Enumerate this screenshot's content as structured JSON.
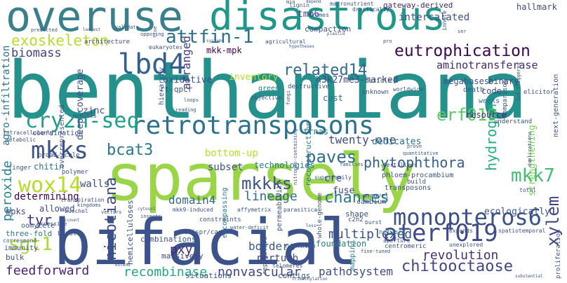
{
  "words": [
    {
      "text": "overuse",
      "color": "#3a7f8c"
    },
    {
      "text": "disastrous",
      "color": "#21968a"
    },
    {
      "text": "benthamiana",
      "color": "#25918c"
    },
    {
      "text": "sparsely",
      "color": "#9ad447"
    },
    {
      "text": "bifacial",
      "color": "#3b528b"
    },
    {
      "text": "retrotransposons",
      "color": "#2c728e"
    },
    {
      "text": "lbd4",
      "color": "#33608d"
    },
    {
      "text": "attfin-1",
      "color": "#2d708e"
    },
    {
      "text": "exoskeleton",
      "color": "#b5de2b"
    },
    {
      "text": "eutrophication",
      "color": "#3e0751"
    },
    {
      "text": "related14",
      "color": "#2f6b8e"
    },
    {
      "text": "cry2h-seq",
      "color": "#1f9e89"
    },
    {
      "text": "aminotransferase",
      "color": "#482677"
    },
    {
      "text": "biomass",
      "color": "#433e85"
    },
    {
      "text": "mkks",
      "color": "#3b528b"
    },
    {
      "text": "bcat3",
      "color": "#2a788e"
    },
    {
      "text": "erf019",
      "color": "#5ec962"
    },
    {
      "text": "wox14",
      "color": "#b5de2b"
    },
    {
      "text": "paves",
      "color": "#2d6f8e"
    },
    {
      "text": "phytophthora",
      "color": "#355f8d"
    },
    {
      "text": "monopteros6",
      "color": "#3b528b"
    },
    {
      "text": "mkk7",
      "color": "#40bd72"
    },
    {
      "text": "aterf019",
      "color": "#3e4a89"
    },
    {
      "text": "chitooctaose",
      "color": "#3f4788"
    },
    {
      "text": "mkkks",
      "color": "#3b528b"
    },
    {
      "text": "chances",
      "color": "#2a788e"
    },
    {
      "text": "revolution",
      "color": "#472d7b"
    },
    {
      "text": "sgt1",
      "color": "#a8db34"
    },
    {
      "text": "pathosystem",
      "color": "#3e4c8a"
    },
    {
      "text": "recombinase",
      "color": "#22a785"
    },
    {
      "text": "nonvascular",
      "color": "#3f4788"
    },
    {
      "text": "lineage",
      "color": "#2f6c8e"
    },
    {
      "text": "domain4",
      "color": "#31688e"
    },
    {
      "text": "hydrogen",
      "color": "#26ad81"
    },
    {
      "text": "xylem",
      "color": "#3f4788"
    },
    {
      "text": "nicotiana",
      "color": "#3d4d8a"
    },
    {
      "text": "twenty-one",
      "color": "#3d4d8a"
    },
    {
      "text": "peroxide",
      "color": "#25848e"
    },
    {
      "text": "agro-infiltration",
      "color": "#2a768e"
    },
    {
      "text": "tyr",
      "color": "#46327e"
    },
    {
      "text": "pxy",
      "color": "#472a7a"
    },
    {
      "text": "feedforward",
      "color": "#481f70"
    },
    {
      "text": "multiplexed",
      "color": "#3a538b"
    },
    {
      "text": "borders",
      "color": "#38598c"
    },
    {
      "text": "perturb",
      "color": "#3f4788"
    },
    {
      "text": "mkk-mpk",
      "color": "#440154"
    },
    {
      "text": "tmo6",
      "color": "#3f4788"
    },
    {
      "text": "intercalated",
      "color": "#3b528b"
    },
    {
      "text": "gateway-derived",
      "color": "#482677"
    },
    {
      "text": "hallmark",
      "color": "#3e4a89"
    },
    {
      "text": "oxidative",
      "color": "#3b528b"
    },
    {
      "text": "determining",
      "color": "#440154"
    },
    {
      "text": "walls",
      "color": "#3f4788"
    },
    {
      "text": "chitin",
      "color": "#2e6f8e"
    },
    {
      "text": "bottom-up",
      "color": "#b5de2b"
    },
    {
      "text": "subset",
      "color": "#3b528b"
    },
    {
      "text": "technologies",
      "color": "#2a788e"
    },
    {
      "text": "cre",
      "color": "#3b528b"
    },
    {
      "text": "fuse",
      "color": "#3f4788"
    },
    {
      "text": "trnas",
      "color": "#2a788e"
    },
    {
      "text": "dedicates",
      "color": "#2c728e"
    },
    {
      "text": "resource",
      "color": "#482677"
    },
    {
      "text": "inventory",
      "color": "#b5de2b"
    },
    {
      "text": "h3k27me3-marked",
      "color": "#3f4788"
    },
    {
      "text": "arranged",
      "color": "#433e85"
    },
    {
      "text": "deep-coverage",
      "color": "#3b528b"
    },
    {
      "text": "megabases",
      "color": "#3b528b"
    },
    {
      "text": "binary",
      "color": "#3f4788"
    },
    {
      "text": "zinc",
      "color": "#3e4a89"
    },
    {
      "text": "mpks",
      "color": "#414487"
    },
    {
      "text": "foundation",
      "color": "#2a788e"
    },
    {
      "text": "strengthening",
      "color": "#7ad151"
    },
    {
      "text": "ecologically",
      "color": "#3b528b"
    },
    {
      "text": "cost",
      "color": "#2c728e"
    },
    {
      "text": "code",
      "color": "#3f4788"
    },
    {
      "text": "compaction",
      "color": "#3b528b"
    },
    {
      "text": "architecture",
      "color": "#3e4a89"
    },
    {
      "text": "allowed",
      "color": "#3f4788"
    },
    {
      "text": "three-fold",
      "color": "#2a788e"
    },
    {
      "text": "bulk",
      "color": "#3b528b"
    },
    {
      "text": "massively",
      "color": "#3f4788"
    },
    {
      "text": "combinations",
      "color": "#3b528b"
    },
    {
      "text": "situations",
      "color": "#3b528b"
    },
    {
      "text": "contigs",
      "color": "#3b528b"
    },
    {
      "text": "oomycete",
      "color": "#3b528b"
    },
    {
      "text": "immunity",
      "color": "#3b528b"
    },
    {
      "text": "shape",
      "color": "#3b528b"
    },
    {
      "text": "cambium",
      "color": "#3b528b"
    },
    {
      "text": "green",
      "color": "#2a788e"
    },
    {
      "text": "weeks",
      "color": "#2a788e"
    },
    {
      "text": "death",
      "color": "#3b528b"
    },
    {
      "text": "reconstruction",
      "color": "#2a788e"
    },
    {
      "text": "phloem-procambium",
      "color": "#3b528b"
    },
    {
      "text": "network",
      "color": "#2a788e"
    },
    {
      "text": "centromeric",
      "color": "#3b528b"
    },
    {
      "text": "transposons",
      "color": "#3b528b"
    },
    {
      "text": "repetitive",
      "color": "#3b528b"
    },
    {
      "text": "mapping",
      "color": "#2a788e"
    },
    {
      "text": "coordination",
      "color": "#3b528b"
    },
    {
      "text": "metabolic",
      "color": "#3b528b"
    },
    {
      "text": "broad-scale",
      "color": "#3b528b"
    },
    {
      "text": "hemicelluloses",
      "color": "#3b528b"
    },
    {
      "text": "bundle",
      "color": "#3b528b"
    },
    {
      "text": "encompassing",
      "color": "#2a788e"
    },
    {
      "text": "permeability",
      "color": "#3b528b"
    },
    {
      "text": "next-generation",
      "color": "#3b528b"
    },
    {
      "text": "unknown",
      "color": "#3b528b"
    },
    {
      "text": "comparison",
      "color": "#3b528b"
    },
    {
      "text": "superfamily",
      "color": "#3b528b"
    },
    {
      "text": "build",
      "color": "#3b528b"
    },
    {
      "text": "fertilizer",
      "color": "#3b528b"
    },
    {
      "text": "unravel",
      "color": "#3b528b"
    },
    {
      "text": "understand",
      "color": "#3b528b"
    },
    {
      "text": "finger",
      "color": "#3b528b"
    },
    {
      "text": "transpiration",
      "color": "#3b528b"
    },
    {
      "text": "excessive",
      "color": "#3b528b"
    },
    {
      "text": "polymer",
      "color": "#3b528b"
    },
    {
      "text": "intracellularly",
      "color": "#3b528b"
    },
    {
      "text": "modules",
      "color": "#3b528b"
    },
    {
      "text": "wuschel",
      "color": "#3b528b"
    },
    {
      "text": "kingdoms",
      "color": "#3b528b"
    },
    {
      "text": "correspond",
      "color": "#3b528b"
    },
    {
      "text": "overrepresented",
      "color": "#3b528b"
    },
    {
      "text": "crispr/cas9",
      "color": "#3b528b"
    },
    {
      "text": "mkk9-induced",
      "color": "#3b528b"
    },
    {
      "text": "affymetrix",
      "color": "#3b528b"
    },
    {
      "text": "parasitica",
      "color": "#3b528b"
    },
    {
      "text": "whole-genome",
      "color": "#3b528b"
    },
    {
      "text": "c2h2",
      "color": "#3b528b"
    },
    {
      "text": "cuticle",
      "color": "#3b528b"
    },
    {
      "text": "hierarchy",
      "color": "#3b528b"
    },
    {
      "text": "rt-qpcr",
      "color": "#3b528b"
    },
    {
      "text": "elicitor",
      "color": "#3b528b"
    },
    {
      "text": "worldwide",
      "color": "#3b528b"
    },
    {
      "text": "proliferation",
      "color": "#3b528b"
    },
    {
      "text": "spatiotemporal",
      "color": "#3b528b"
    },
    {
      "text": "telomeres",
      "color": "#3b528b"
    },
    {
      "text": "aperture",
      "color": "#3b528b"
    },
    {
      "text": "unexplored",
      "color": "#3b528b"
    },
    {
      "text": "fine-tuned",
      "color": "#3b528b"
    },
    {
      "text": "total",
      "color": "#3b528b"
    },
    {
      "text": "expands",
      "color": "#3b528b"
    },
    {
      "text": "burst",
      "color": "#3b528b"
    },
    {
      "text": "destructive",
      "color": "#3b528b"
    },
    {
      "text": "agricultural",
      "color": "#3b528b"
    },
    {
      "text": "eukaryotes",
      "color": "#3b528b"
    },
    {
      "text": "lignin",
      "color": "#3b528b"
    },
    {
      "text": "macronutrient",
      "color": "#3b528b"
    },
    {
      "text": "frames",
      "color": "#3b528b"
    },
    {
      "text": "drastically",
      "color": "#3b528b"
    },
    {
      "text": "innate",
      "color": "#3b528b"
    },
    {
      "text": "predicted",
      "color": "#3b528b"
    },
    {
      "text": "validate",
      "color": "#3b528b"
    },
    {
      "text": "opposing",
      "color": "#3b528b"
    },
    {
      "text": "largest",
      "color": "#3b528b"
    },
    {
      "text": "systems",
      "color": "#3b528b"
    },
    {
      "text": "hypotheses",
      "color": "#3b528b"
    },
    {
      "text": "inf-triggered",
      "color": "#3b528b"
    },
    {
      "text": "duplications",
      "color": "#3b528b"
    },
    {
      "text": "water-deficit",
      "color": "#3b528b"
    },
    {
      "text": "nitrogen-containing",
      "color": "#3b528b"
    },
    {
      "text": "trimethylation",
      "color": "#3b528b"
    },
    {
      "text": "feed-forward",
      "color": "#3b528b"
    },
    {
      "text": "constraints",
      "color": "#3b528b"
    },
    {
      "text": "extend",
      "color": "#3b528b"
    },
    {
      "text": "cytosol",
      "color": "#3b528b"
    },
    {
      "text": "vectors",
      "color": "#3b528b"
    },
    {
      "text": "insects",
      "color": "#3b528b"
    },
    {
      "text": "account",
      "color": "#3b528b"
    },
    {
      "text": "loops",
      "color": "#3b528b"
    },
    {
      "text": "objective",
      "color": "#3b528b"
    },
    {
      "text": "reading",
      "color": "#3b528b"
    },
    {
      "text": "families",
      "color": "#3b528b"
    },
    {
      "text": "prove",
      "color": "#3b528b"
    },
    {
      "text": "quantitative",
      "color": "#3b528b"
    },
    {
      "text": "fungi",
      "color": "#3b528b"
    },
    {
      "text": "plastid",
      "color": "#3b528b"
    },
    {
      "text": "true",
      "color": "#3b528b"
    },
    {
      "text": "pro",
      "color": "#3b528b"
    },
    {
      "text": "ser",
      "color": "#3b528b"
    },
    {
      "text": "min",
      "color": "#3b528b"
    },
    {
      "text": "loss",
      "color": "#3b528b"
    },
    {
      "text": "depend",
      "color": "#3b528b"
    },
    {
      "text": "substantial",
      "color": "#3b528b"
    }
  ]
}
